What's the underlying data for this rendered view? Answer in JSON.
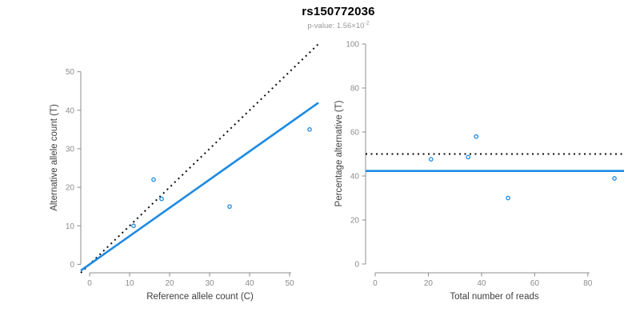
{
  "title": "rs150772036",
  "subtitle": {
    "text": "p-value: 1.56×10",
    "exponent": "-2"
  },
  "colors": {
    "blue": "#1E8AE2",
    "black": "#0A0A0A",
    "axis": "#8C8C8C",
    "tick_label": "#8C8C8C",
    "axis_title": "#404040",
    "title": "#000000",
    "subtitle": "#999999",
    "background": "#FFFFFF"
  },
  "chart_data": [
    {
      "type": "scatter",
      "panel": "allele-counts",
      "xlabel": "Reference allele count (C)",
      "ylabel": "Alternative allele count (T)",
      "xlim": [
        0,
        55
      ],
      "ylim": [
        0,
        55
      ],
      "xticks": [
        0,
        10,
        20,
        30,
        40,
        50
      ],
      "yticks": [
        0,
        10,
        20,
        30,
        40,
        50
      ],
      "grid": false,
      "points": [
        [
          11,
          10
        ],
        [
          16,
          22
        ],
        [
          18,
          17
        ],
        [
          35,
          15
        ],
        [
          55,
          35
        ]
      ],
      "lines": [
        {
          "name": "identity-line",
          "style": "dotted",
          "color": "black",
          "slope": 1,
          "intercept": 0
        },
        {
          "name": "allele-ratio-line",
          "style": "solid",
          "color": "blue",
          "slope": 0.7333,
          "intercept": 0
        }
      ]
    },
    {
      "type": "scatter",
      "panel": "percentage-alternative",
      "xlabel": "Total number of reads",
      "ylabel": "Percentage alternative (T)",
      "xlim": [
        0,
        90
      ],
      "ylim": [
        0,
        100
      ],
      "xticks": [
        0,
        20,
        40,
        60,
        80
      ],
      "yticks": [
        0,
        20,
        40,
        60,
        80,
        100
      ],
      "grid": false,
      "points": [
        [
          21,
          47.6
        ],
        [
          35,
          48.6
        ],
        [
          38,
          57.9
        ],
        [
          50,
          30
        ],
        [
          90,
          38.9
        ]
      ],
      "lines": [
        {
          "name": "expected-50pct-line",
          "style": "dotted",
          "color": "black",
          "y": 50
        },
        {
          "name": "observed-pct-line",
          "style": "solid",
          "color": "blue",
          "y": 42.3
        }
      ]
    }
  ]
}
